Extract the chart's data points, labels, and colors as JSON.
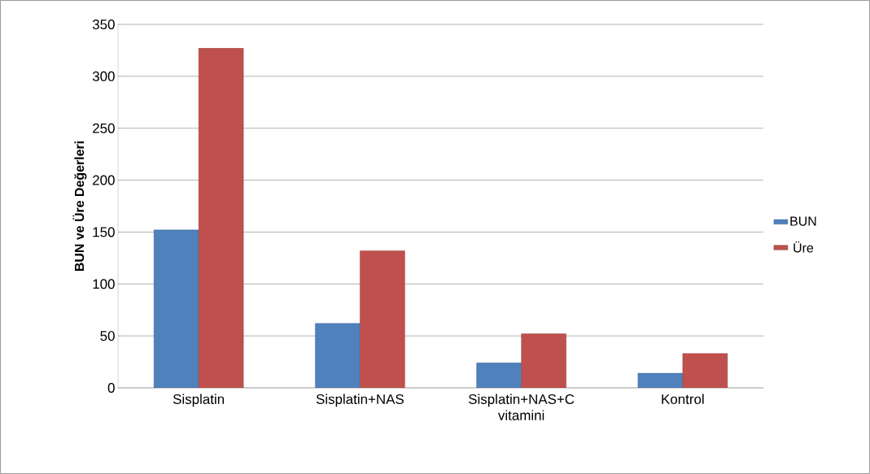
{
  "chart_data": {
    "type": "bar",
    "ylabel": "BUN ve Üre Değerleri",
    "categories": [
      "Sisplatin",
      "Sisplatin+NAS",
      "Sisplatin+NAS+C vitamini",
      "Kontrol"
    ],
    "series": [
      {
        "name": "BUN",
        "color": "#4f81bd",
        "values": [
          152,
          62,
          24,
          14
        ]
      },
      {
        "name": "Üre",
        "color": "#c0504d",
        "values": [
          327,
          132,
          52,
          33
        ]
      }
    ],
    "ylim": [
      0,
      350
    ],
    "yticks": [
      0,
      50,
      100,
      150,
      200,
      250,
      300,
      350
    ],
    "grid": "y",
    "legend": "right"
  }
}
